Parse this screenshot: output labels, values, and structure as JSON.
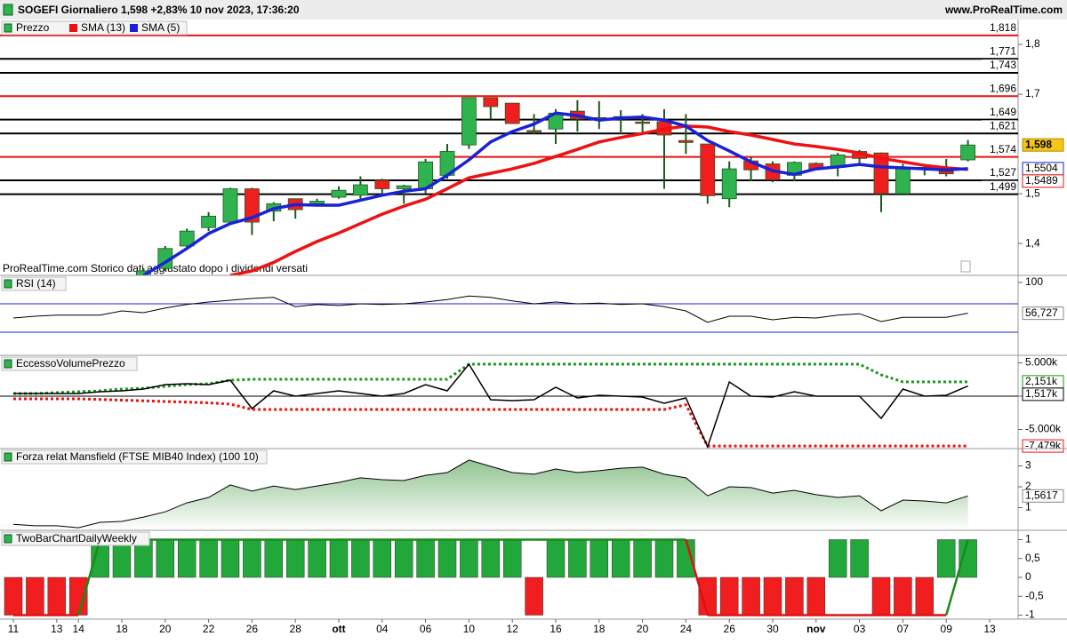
{
  "header": {
    "title": "SOGEFI Giornaliero 1,598 +2,83% 10 nov 2023, 17:36:20",
    "site": "www.ProRealTime.com",
    "note": "ProRealTime.com  Storico dati aggiustato dopo i dividendi versati"
  },
  "chart_data": [
    {
      "type": "candlestick",
      "name": "Prezzo",
      "up_color": "#2eb34f",
      "down_color": "#f01e1e",
      "categories": [
        "11",
        null,
        "13",
        "14",
        null,
        "18",
        null,
        "20",
        null,
        "22",
        null,
        "26",
        null,
        "28",
        null,
        "ott",
        null,
        "04",
        null,
        "06",
        null,
        "10",
        null,
        "12",
        null,
        "16",
        null,
        "18",
        null,
        "20",
        null,
        "24",
        null,
        "26",
        null,
        "30",
        null,
        "nov",
        null,
        "03",
        null,
        "07",
        null,
        "09",
        null,
        "13"
      ],
      "open": [
        null,
        null,
        null,
        null,
        null,
        null,
        1.33,
        1.35,
        1.395,
        1.432,
        1.443,
        1.51,
        1.465,
        1.49,
        1.48,
        1.493,
        1.497,
        1.527,
        1.51,
        1.51,
        1.537,
        1.598,
        1.693,
        1.682,
        1.627,
        1.63,
        1.666,
        1.653,
        1.655,
        1.644,
        1.645,
        1.607,
        1.6,
        1.49,
        1.566,
        1.56,
        1.537,
        1.561,
        1.553,
        1.585,
        1.582,
        1.5,
        1.553,
        1.545,
        1.568,
        null
      ],
      "high": [
        null,
        null,
        null,
        null,
        null,
        null,
        1.35,
        1.395,
        1.43,
        1.463,
        1.512,
        1.512,
        1.483,
        1.49,
        1.49,
        1.515,
        1.535,
        1.53,
        1.518,
        1.57,
        1.6,
        1.693,
        1.693,
        1.682,
        1.66,
        1.67,
        1.688,
        1.686,
        1.668,
        1.66,
        1.67,
        1.66,
        1.6,
        1.565,
        1.575,
        1.565,
        1.565,
        1.563,
        1.582,
        1.588,
        1.583,
        1.56,
        1.56,
        1.57,
        1.608,
        null
      ],
      "low": [
        null,
        null,
        null,
        null,
        null,
        null,
        1.33,
        1.345,
        1.39,
        1.425,
        1.44,
        1.417,
        1.445,
        1.45,
        1.475,
        1.49,
        1.49,
        1.497,
        1.48,
        1.5,
        1.53,
        1.59,
        1.65,
        1.641,
        1.62,
        1.6,
        1.625,
        1.63,
        1.62,
        1.62,
        1.51,
        1.58,
        1.48,
        1.473,
        1.525,
        1.523,
        1.525,
        1.55,
        1.535,
        1.56,
        1.463,
        1.5,
        1.537,
        1.535,
        1.565,
        null
      ],
      "close": [
        null,
        null,
        null,
        null,
        null,
        null,
        1.345,
        1.39,
        1.425,
        1.455,
        1.51,
        1.443,
        1.48,
        1.468,
        1.485,
        1.507,
        1.518,
        1.51,
        1.516,
        1.564,
        1.585,
        1.693,
        1.675,
        1.641,
        1.625,
        1.662,
        1.65,
        1.65,
        1.652,
        1.642,
        1.618,
        1.603,
        1.496,
        1.55,
        1.548,
        1.528,
        1.563,
        1.55,
        1.578,
        1.571,
        1.5,
        1.553,
        1.55,
        1.54,
        1.598,
        null
      ],
      "last_label": "1,598",
      "overlays": [
        {
          "name": "SMA (13)",
          "color": "#ee1111",
          "last_label": "1,5489",
          "values": [
            null,
            null,
            null,
            null,
            null,
            null,
            null,
            null,
            null,
            null,
            1.336,
            1.345,
            1.362,
            1.384,
            1.404,
            1.421,
            1.44,
            1.459,
            1.475,
            1.489,
            1.51,
            1.532,
            1.541,
            1.55,
            1.561,
            1.575,
            1.589,
            1.604,
            1.613,
            1.621,
            1.63,
            1.636,
            1.634,
            1.625,
            1.618,
            1.609,
            1.6,
            1.595,
            1.589,
            1.582,
            1.571,
            1.564,
            1.557,
            1.552,
            1.5489,
            null
          ]
        },
        {
          "name": "SMA (5)",
          "color": "#1a22d6",
          "last_label": "1,5504",
          "values": [
            null,
            null,
            null,
            null,
            null,
            null,
            1.336,
            1.362,
            1.39,
            1.42,
            1.44,
            1.452,
            1.47,
            1.478,
            1.477,
            1.477,
            1.487,
            1.497,
            1.505,
            1.51,
            1.537,
            1.568,
            1.604,
            1.625,
            1.64,
            1.662,
            1.657,
            1.648,
            1.652,
            1.654,
            1.648,
            1.636,
            1.607,
            1.586,
            1.564,
            1.546,
            1.539,
            1.55,
            1.554,
            1.559,
            1.554,
            1.552,
            1.55,
            1.548,
            1.5504,
            null
          ]
        }
      ],
      "levels": [
        {
          "value": 1.818,
          "label": "1,818",
          "color": "#ee1111"
        },
        {
          "value": 1.771,
          "label": "1,771",
          "color": "#000000"
        },
        {
          "value": 1.743,
          "label": "1,743",
          "color": "#000000"
        },
        {
          "value": 1.696,
          "label": "1,696",
          "color": "#ee1111"
        },
        {
          "value": 1.649,
          "label": "1,649",
          "color": "#000000"
        },
        {
          "value": 1.621,
          "label": "1,621",
          "color": "#000000"
        },
        {
          "value": 1.574,
          "label": "1,574",
          "color": "#ee1111"
        },
        {
          "value": 1.527,
          "label": "1,527",
          "color": "#000000"
        },
        {
          "value": 1.499,
          "label": "1,499",
          "color": "#000000"
        }
      ],
      "ylim": [
        1.336,
        1.85
      ],
      "yticks": [
        {
          "value": 1.8,
          "label": "1,8"
        },
        {
          "value": 1.7,
          "label": "1,7"
        },
        {
          "value": 1.5,
          "label": "1,5"
        },
        {
          "value": 1.4,
          "label": "1,4"
        }
      ]
    },
    {
      "type": "line",
      "title": "RSI (14)",
      "color": "#000000",
      "last_label": "56,727",
      "values": [
        50,
        52.5,
        54,
        54,
        54,
        60,
        57.5,
        64,
        69,
        72.5,
        75,
        77.5,
        79,
        66,
        69,
        67.5,
        70,
        69,
        70,
        72.5,
        76,
        81,
        79,
        74,
        70,
        72.5,
        70,
        71,
        69,
        70,
        66,
        60,
        44,
        52.5,
        52.5,
        47.5,
        51,
        50,
        54,
        56,
        45,
        51,
        51,
        51,
        56.727,
        null
      ],
      "levels": [
        {
          "value": 70,
          "color": "#1a22d6"
        },
        {
          "value": 30,
          "color": "#1a22d6"
        }
      ],
      "ylim": [
        -2.5,
        110
      ],
      "yticks": [
        100
      ]
    },
    {
      "type": "multi-line",
      "title": "EccessoVolumePrezzo",
      "zero_line": true,
      "series": [
        {
          "color": "#1a9a1a",
          "line_style": "dotted",
          "last_label": "2,151k",
          "values": [
            400,
            400,
            533,
            667,
            800,
            1067,
            1200,
            1467,
            1733,
            1867,
            2400,
            2533,
            2533,
            2533,
            2533,
            2533,
            2533,
            2533,
            2533,
            2533,
            2533,
            4800,
            4800,
            4800,
            4800,
            4800,
            4800,
            4800,
            4800,
            4800,
            4800,
            4800,
            4800,
            4800,
            4800,
            4800,
            4800,
            4800,
            4800,
            4800,
            3200,
            2151,
            2151,
            2151,
            2151,
            null
          ]
        },
        {
          "color": "#ee1111",
          "line_style": "dotted",
          "last_label": "-7,479k",
          "values": [
            -400,
            -400,
            -400,
            -400,
            -500,
            -600,
            -700,
            -800,
            -900,
            -1000,
            -1200,
            -2000,
            -2000,
            -2000,
            -2000,
            -2000,
            -2000,
            -2000,
            -2000,
            -2000,
            -2000,
            -2000,
            -2000,
            -2000,
            -2000,
            -2000,
            -2000,
            -2000,
            -2000,
            -2000,
            -2000,
            -1300,
            -7479,
            -7479,
            -7479,
            -7479,
            -7479,
            -7479,
            -7479,
            -7479,
            -7479,
            -7479,
            -7479,
            -7479,
            -7479,
            null
          ]
        },
        {
          "color": "#000000",
          "line_style": "solid",
          "last_label": "1,517k",
          "values": [
            400,
            400,
            400,
            400,
            667,
            800,
            1067,
            1733,
            1867,
            1733,
            2400,
            -1867,
            800,
            0,
            400,
            800,
            400,
            0,
            400,
            1733,
            800,
            4800,
            -533,
            -667,
            -533,
            1333,
            -267,
            133,
            0,
            -133,
            -1067,
            -267,
            -7600,
            2133,
            0,
            -133,
            667,
            0,
            0,
            0,
            -3333,
            1067,
            0,
            133,
            1517,
            null
          ]
        }
      ],
      "ylim": [
        -7867,
        6133
      ],
      "yticks": [
        {
          "value": 5000,
          "label": "5.000k"
        },
        0,
        {
          "value": -5000,
          "label": "-5.000k"
        }
      ]
    },
    {
      "type": "area",
      "title": "Forza relat Mansfield (FTSE MIB40 Index) (100 10)",
      "color": "#000000",
      "fill": "#7fba7f",
      "last_label": "1,5617",
      "values": [
        0.2,
        0.13,
        0.13,
        0.04,
        0.3,
        0.34,
        0.55,
        0.8,
        1.23,
        1.49,
        2.09,
        1.79,
        2.04,
        1.87,
        2.04,
        2.21,
        2.43,
        2.34,
        2.3,
        2.55,
        2.68,
        3.28,
        2.98,
        2.68,
        2.6,
        2.85,
        2.68,
        2.77,
        2.89,
        2.94,
        2.6,
        2.43,
        1.57,
        2,
        1.96,
        1.7,
        1.83,
        1.62,
        1.49,
        1.57,
        0.85,
        1.36,
        1.32,
        1.23,
        1.5617,
        null
      ],
      "ylim": [
        -0.085,
        3.83
      ],
      "yticks": [
        3,
        2,
        1
      ]
    },
    {
      "type": "twobar",
      "title": "TwoBarChartDailyWeekly",
      "up_color": "#22a83a",
      "down_color": "#f01e1e",
      "values": [
        -1,
        -1,
        -1,
        -1,
        1,
        1,
        1,
        1,
        1,
        1,
        1,
        1,
        1,
        1,
        1,
        1,
        1,
        1,
        1,
        1,
        1,
        1,
        1,
        1,
        -1,
        1,
        1,
        1,
        1,
        1,
        1,
        1,
        -1,
        -1,
        -1,
        -1,
        -1,
        -1,
        1,
        1,
        -1,
        -1,
        -1,
        1,
        1,
        null
      ],
      "line": [
        -1,
        -1,
        -1,
        -1,
        1,
        1,
        1,
        1,
        1,
        1,
        1,
        1,
        1,
        1,
        1,
        1,
        1,
        1,
        1,
        1,
        1,
        1,
        1,
        1,
        1,
        1,
        1,
        1,
        1,
        1,
        1,
        1,
        -1,
        -1,
        -1,
        -1,
        -1,
        -1,
        -1,
        -1,
        -1,
        -1,
        -1,
        -1,
        1,
        null
      ],
      "ylim": [
        -1.106,
        1.247
      ],
      "yticks": [
        1,
        {
          "value": 0.5,
          "label": "0,5"
        },
        0,
        {
          "value": -0.5,
          "label": "-0,5"
        },
        -1
      ]
    }
  ]
}
